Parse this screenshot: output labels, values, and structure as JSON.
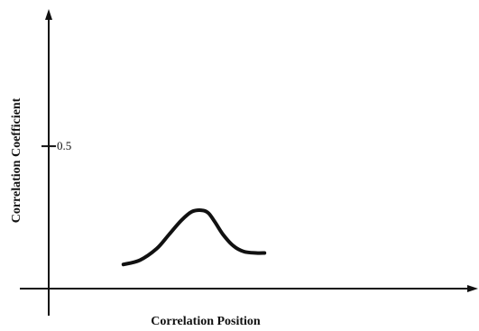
{
  "chart_data": {
    "type": "line",
    "title": "",
    "xlabel": "Correlation Position",
    "ylabel": "Correlation Coefficient",
    "y_ticks": [
      {
        "value": 0.5,
        "label": "0.5"
      }
    ],
    "xlim": [
      0,
      10
    ],
    "ylim": [
      0,
      0.95
    ],
    "grid": false,
    "legend": "none",
    "series": [
      {
        "x": [
          1.8,
          2.2,
          2.6,
          2.9,
          3.2,
          3.45,
          3.7,
          3.85,
          4.0,
          4.2,
          4.45,
          4.7,
          5.0,
          5.2
        ],
        "y": [
          0.085,
          0.1,
          0.14,
          0.19,
          0.24,
          0.27,
          0.275,
          0.265,
          0.235,
          0.19,
          0.15,
          0.13,
          0.125,
          0.125
        ]
      }
    ]
  }
}
